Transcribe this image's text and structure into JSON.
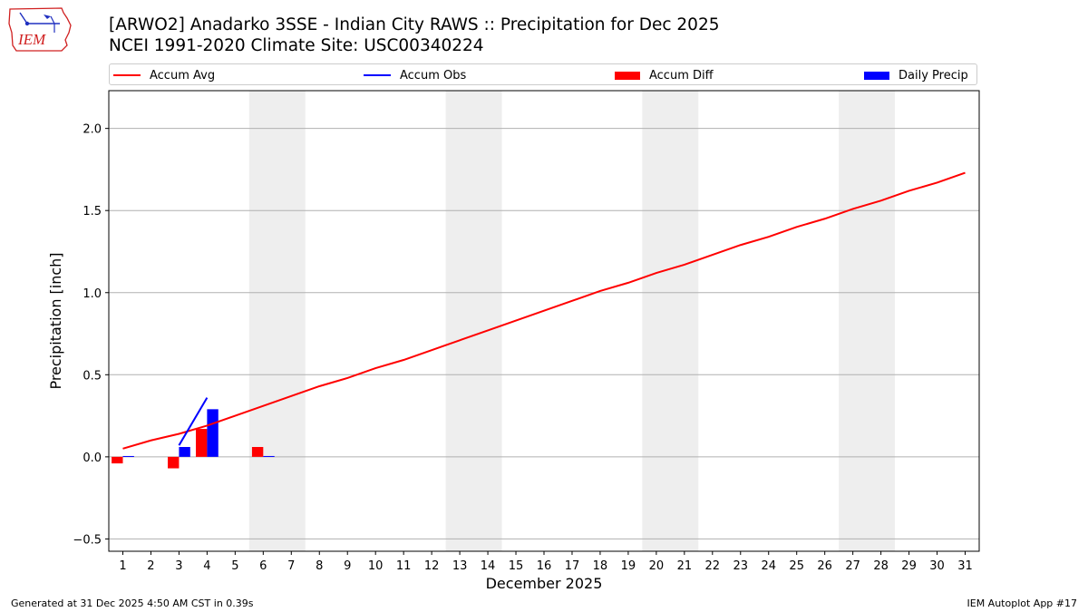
{
  "header": {
    "title_line1": "[ARWO2] Anadarko 3SSE - Indian City RAWS :: Precipitation for Dec 2025",
    "title_line2": "NCEI 1991-2020 Climate Site: USC00340224"
  },
  "logo": {
    "text": "IEM",
    "icon": "iowa-weather-station-logo"
  },
  "legend": {
    "placement": "top",
    "items": [
      {
        "label": "Accum Avg",
        "color": "#ff0000",
        "kind": "line"
      },
      {
        "label": "Accum Obs",
        "color": "#0000ff",
        "kind": "line"
      },
      {
        "label": "Accum Diff",
        "color": "#ff0000",
        "kind": "bar"
      },
      {
        "label": "Daily Precip",
        "color": "#0000ff",
        "kind": "bar"
      }
    ]
  },
  "footer": {
    "left": "Generated at 31 Dec 2025 4:50 AM CST in 0.39s",
    "right": "IEM Autoplot App #17"
  },
  "chart_data": {
    "type": "bar",
    "xlabel": "December 2025",
    "ylabel": "Precipitation [inch]",
    "ylim": [
      -0.575,
      2.23
    ],
    "xlim": [
      0.5,
      31.5
    ],
    "yticks": [
      -0.5,
      0.0,
      0.5,
      1.0,
      1.5,
      2.0
    ],
    "ytick_labels": [
      "−0.5",
      "0.0",
      "0.5",
      "1.0",
      "1.5",
      "2.0"
    ],
    "categories": [
      "1",
      "2",
      "3",
      "4",
      "5",
      "6",
      "7",
      "8",
      "9",
      "10",
      "11",
      "12",
      "13",
      "14",
      "15",
      "16",
      "17",
      "18",
      "19",
      "20",
      "21",
      "22",
      "23",
      "24",
      "25",
      "26",
      "27",
      "28",
      "29",
      "30",
      "31"
    ],
    "grid": "horizontal",
    "weekend_shading": [
      [
        5.5,
        7.5
      ],
      [
        12.5,
        14.5
      ],
      [
        19.5,
        21.5
      ],
      [
        26.5,
        28.5
      ]
    ],
    "series": [
      {
        "name": "Accum Avg",
        "type": "line",
        "color": "#ff0000",
        "x": [
          1,
          2,
          3,
          4,
          5,
          6,
          7,
          8,
          9,
          10,
          11,
          12,
          13,
          14,
          15,
          16,
          17,
          18,
          19,
          20,
          21,
          22,
          23,
          24,
          25,
          26,
          27,
          28,
          29,
          30,
          31
        ],
        "values": [
          0.05,
          0.1,
          0.14,
          0.19,
          0.25,
          0.31,
          0.37,
          0.43,
          0.48,
          0.54,
          0.59,
          0.65,
          0.71,
          0.77,
          0.83,
          0.89,
          0.95,
          1.01,
          1.06,
          1.12,
          1.17,
          1.23,
          1.29,
          1.34,
          1.4,
          1.45,
          1.51,
          1.56,
          1.62,
          1.67,
          1.73
        ]
      },
      {
        "name": "Accum Obs",
        "type": "line",
        "color": "#0000ff",
        "x": [
          3,
          4
        ],
        "values": [
          0.07,
          0.36
        ]
      },
      {
        "name": "Accum Diff",
        "type": "bar",
        "color": "#ff0000",
        "x": [
          1,
          3,
          4,
          6
        ],
        "values": [
          -0.04,
          -0.07,
          0.17,
          0.06
        ]
      },
      {
        "name": "Daily Precip",
        "type": "bar",
        "color": "#0000ff",
        "x": [
          1,
          3,
          4,
          6
        ],
        "values": [
          0.005,
          0.06,
          0.29,
          0.005
        ]
      }
    ]
  }
}
